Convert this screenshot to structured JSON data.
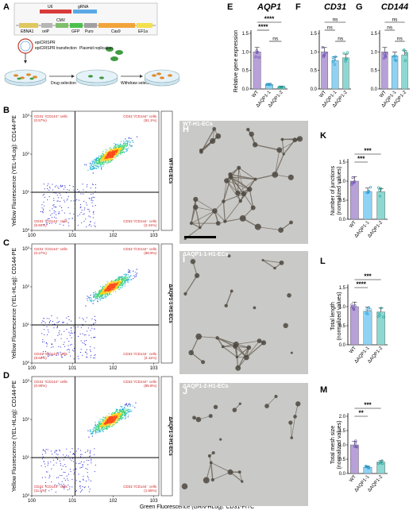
{
  "panel_letters": [
    "A",
    "B",
    "C",
    "D",
    "E",
    "F",
    "G",
    "H",
    "I",
    "J",
    "K",
    "L",
    "M"
  ],
  "schematic": {
    "plasmid_labels": [
      "U6",
      "gRNA",
      "EBNA1",
      "oriP",
      "CMV",
      "GFP",
      "Puro",
      "Cas9",
      "EF1a"
    ],
    "step_labels": [
      "epiCRISPR",
      "epiCRISPR transfection",
      "Plasmid replication",
      "Drug selection",
      "Withdraw selection"
    ],
    "colors": {
      "dish": "#cfe6f3",
      "cells": "#e08a2c",
      "green_cells": "#3f9b3f"
    }
  },
  "flow": {
    "x_axis_label": "Green Fluorescence (GRN-HLog): CD31-FITC",
    "y_axis_label": "Yellow Fluorescence (YEL-HLog): CD144-PE",
    "ticks": [
      "10^0",
      "10^1",
      "10^2",
      "10^3"
    ],
    "panels": [
      {
        "letter": "B",
        "sample": "WT-H1-ECs",
        "q_ul": "CD31⁻/CD144⁺ cells",
        "q_ul_val": "(0.57%)",
        "q_ur": "CD31⁺/CD144⁺ cells",
        "q_ur_val": "(91.1%)",
        "q_ll": "CD31⁻/CD144⁻ cells",
        "q_ll_val": "(5.92%)",
        "q_lr": "CD31⁺/CD144⁻ cells",
        "q_lr_val": "(2.41%)"
      },
      {
        "letter": "C",
        "sample": "ΔAQP1-1-H1-ECs",
        "q_ul": "CD31⁻/CD144⁺ cells",
        "q_ul_val": "(0.27%)",
        "q_ur": "CD31⁺/CD144⁺ cells",
        "q_ur_val": "(88.9%)",
        "q_ll": "CD31⁻/CD144⁻ cells",
        "q_ll_val": "(8.52%)",
        "q_lr": "CD31⁺/CD144⁻ cells",
        "q_lr_val": "(2.11%)"
      },
      {
        "letter": "D",
        "sample": "ΔAQP1-2-H1-ECs",
        "q_ul": "CD31⁻/CD144⁺ cells",
        "q_ul_val": "(0.90%)",
        "q_ur": "CD31⁺/CD144⁺ cells",
        "q_ur_val": "(85.8%)",
        "q_ll": "CD31⁻/CD144⁻ cells",
        "q_ll_val": "(11.6%)",
        "q_lr": "CD31⁺/CD144⁻ cells",
        "q_lr_val": "(1.65%)"
      }
    ]
  },
  "micrographs": [
    {
      "letter": "H",
      "label": "WT-H1-ECs"
    },
    {
      "letter": "I",
      "label": "ΔAQP1-1-H1-ECs"
    },
    {
      "letter": "J",
      "label": "ΔAQP1-2-H1-ECs"
    }
  ],
  "chart_data": [
    {
      "id": "E",
      "type": "bar",
      "title": "AQP1",
      "ylabel": "Relative gene expression",
      "categories": [
        "WT",
        "ΔAQP1-1",
        "ΔAQP1-2"
      ],
      "values": [
        1.0,
        0.12,
        0.05
      ],
      "ylim": [
        0,
        1.5
      ],
      "yticks": [
        "0.0",
        "0.5",
        "1.0",
        "1.5"
      ],
      "colors": [
        "#b8a1d9",
        "#8fd3f4",
        "#8fd8d2"
      ],
      "sig": [
        "****",
        "****",
        "ns"
      ]
    },
    {
      "id": "F",
      "type": "bar",
      "title": "CD31",
      "ylabel": "",
      "categories": [
        "WT",
        "ΔAQP1-1",
        "ΔAQP1-2"
      ],
      "values": [
        1.0,
        0.77,
        0.84
      ],
      "ylim": [
        0,
        1.5
      ],
      "yticks": [
        "0.0",
        "0.5",
        "1.0",
        "1.5"
      ],
      "colors": [
        "#b8a1d9",
        "#8fd3f4",
        "#8fd8d2"
      ],
      "sig": [
        "ns",
        "ns",
        "ns"
      ]
    },
    {
      "id": "G",
      "type": "bar",
      "title": "CD144",
      "ylabel": "",
      "categories": [
        "WT",
        "ΔAQP1-1",
        "ΔAQP1-2"
      ],
      "values": [
        1.0,
        0.89,
        0.92
      ],
      "ylim": [
        0,
        1.5
      ],
      "yticks": [
        "0.0",
        "0.5",
        "1.0",
        "1.5"
      ],
      "colors": [
        "#b8a1d9",
        "#8fd3f4",
        "#8fd8d2"
      ],
      "sig": [
        "ns",
        "ns",
        "ns"
      ]
    },
    {
      "id": "K",
      "type": "bar",
      "title": "",
      "ylabel": "Number of junctions (normalized values)",
      "categories": [
        "WT",
        "ΔAQP1-1",
        "ΔAQP1-2"
      ],
      "values": [
        1.0,
        0.73,
        0.72
      ],
      "ylim": [
        0,
        1.5
      ],
      "yticks": [
        "0.0",
        "0.5",
        "1.0",
        "1.5"
      ],
      "colors": [
        "#b8a1d9",
        "#8fd3f4",
        "#8fd8d2"
      ],
      "sig": [
        "***",
        "***"
      ]
    },
    {
      "id": "L",
      "type": "bar",
      "title": "",
      "ylabel": "Total length (normalized values)",
      "categories": [
        "WT",
        "ΔAQP1-1",
        "ΔAQP1-2"
      ],
      "values": [
        1.0,
        0.88,
        0.86
      ],
      "ylim": [
        0,
        1.5
      ],
      "yticks": [
        "0.0",
        "0.5",
        "1.0",
        "1.5"
      ],
      "colors": [
        "#b8a1d9",
        "#8fd3f4",
        "#8fd8d2"
      ],
      "sig": [
        "***",
        "****"
      ]
    },
    {
      "id": "M",
      "type": "bar",
      "title": "",
      "ylabel": "Total mesh size (normalized values)",
      "categories": [
        "WT",
        "ΔAQP1-1",
        "ΔAQP1-2"
      ],
      "values": [
        1.0,
        0.22,
        0.4
      ],
      "ylim": [
        0,
        2.0
      ],
      "yticks": [
        "0.0",
        "0.5",
        "1.0",
        "1.5",
        "2.0"
      ],
      "colors": [
        "#b8a1d9",
        "#8fd3f4",
        "#8fd8d2"
      ],
      "sig": [
        "***",
        "**"
      ]
    }
  ]
}
